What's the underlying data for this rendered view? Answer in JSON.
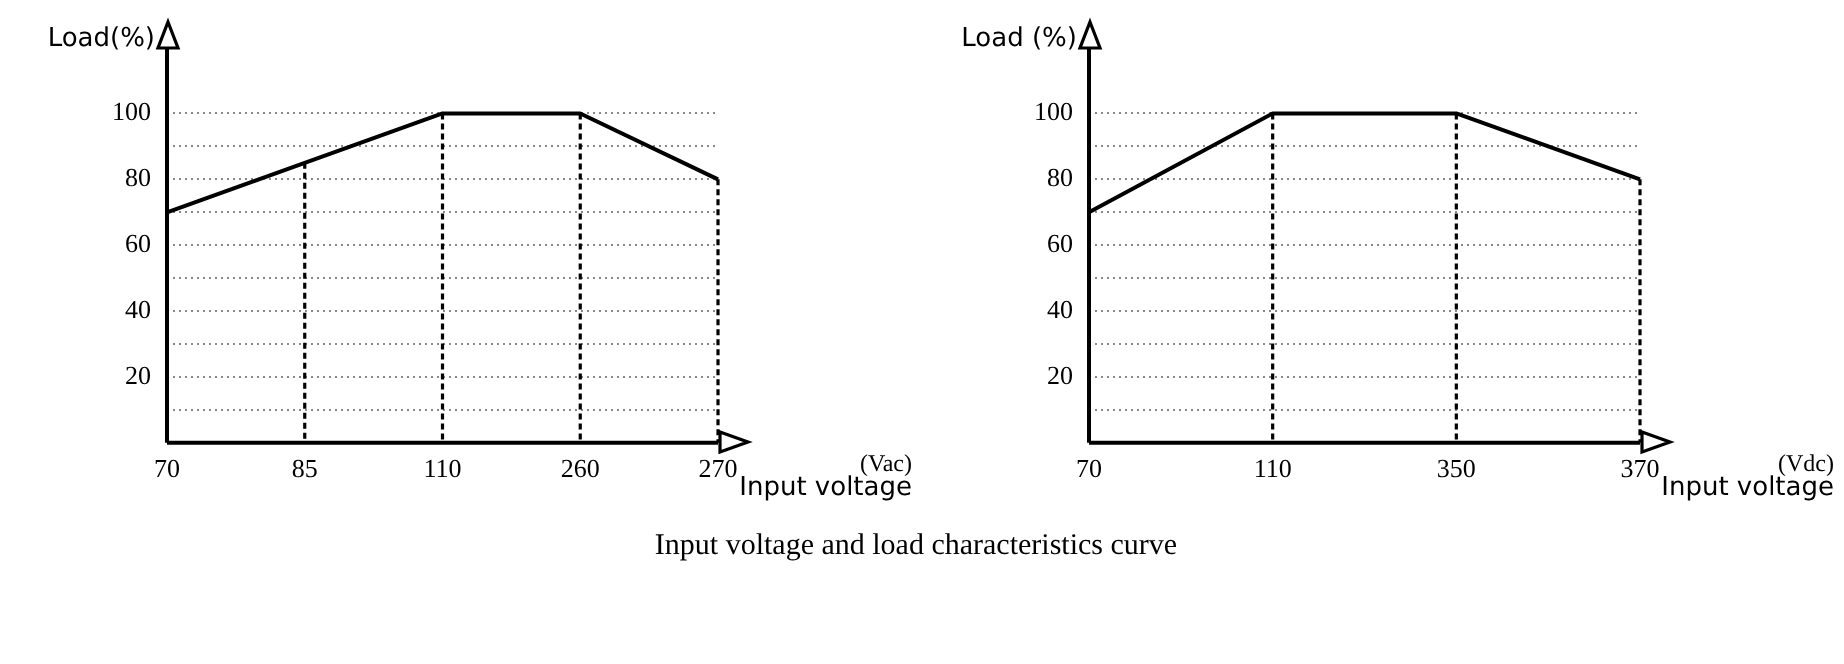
{
  "chart_data": [
    {
      "type": "line",
      "ylabel": "Load(%)",
      "xlabel": "Input voltage",
      "annotations": [
        "(Vac)",
        "Input voltage and load characteristics curve"
      ],
      "categories": [
        "70",
        "85",
        "110",
        "260",
        "270"
      ],
      "series": [
        {
          "color": "#000000",
          "values": [
            70,
            85,
            100,
            100,
            80
          ]
        }
      ],
      "ylim": [
        0,
        120
      ],
      "yticks": [
        {
          "value": 10,
          "label": null
        },
        20,
        {
          "value": 30,
          "label": null
        },
        40,
        {
          "value": 50,
          "label": null
        },
        60,
        {
          "value": 70,
          "label": null
        },
        80,
        {
          "value": 90,
          "label": null
        },
        100
      ],
      "grid": true,
      "legend": false,
      "marker": "none",
      "line_style": "solid"
    },
    {
      "type": "line",
      "ylabel": "Load (%)",
      "xlabel": "Input voltage",
      "annotations": [
        "(Vdc)"
      ],
      "categories": [
        "70",
        "110",
        "350",
        "370"
      ],
      "series": [
        {
          "color": "#000000",
          "values": [
            70,
            100,
            100,
            80
          ]
        }
      ],
      "ylim": [
        0,
        120
      ],
      "yticks": [
        {
          "value": 10,
          "label": null
        },
        20,
        {
          "value": 30,
          "label": null
        },
        40,
        {
          "value": 50,
          "label": null
        },
        60,
        {
          "value": 70,
          "label": null
        },
        80,
        {
          "value": 90,
          "label": null
        },
        100
      ],
      "grid": true,
      "legend": false,
      "marker": "none",
      "line_style": "solid"
    }
  ]
}
